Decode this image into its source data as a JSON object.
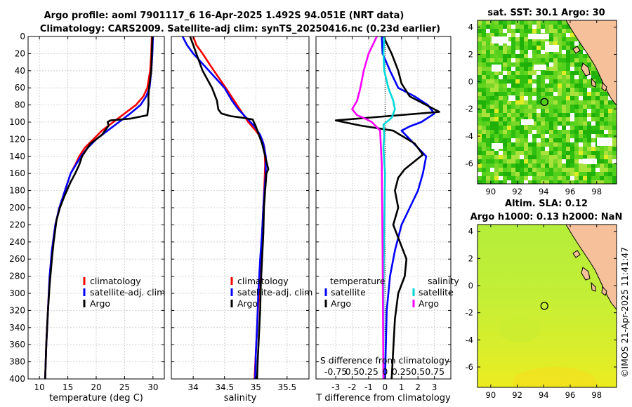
{
  "title": {
    "line1": "Argo profile: aoml 7901117_6 16-Apr-2025 1.492S 94.051E (NRT data)",
    "line2": "Climatology: CARS2009. Satellite-adj clim: synTS_20250416.nc (0.23d earlier)"
  },
  "stamp": "©IMOS 21-Apr-2025 11:41:47",
  "chart_data": [
    {
      "type": "line",
      "id": "temperature",
      "xlabel": "temperature (deg C)",
      "ylabel": "",
      "xlim": [
        8,
        32
      ],
      "ylim": [
        400,
        0
      ],
      "xticks": [
        10,
        15,
        20,
        25,
        30
      ],
      "yticks": [
        0,
        20,
        40,
        60,
        80,
        100,
        120,
        140,
        160,
        180,
        200,
        220,
        240,
        260,
        280,
        300,
        320,
        340,
        360,
        380,
        400
      ],
      "legend": [
        "climatology",
        "satellite-adj. clim",
        "Argo"
      ],
      "series": [
        {
          "name": "climatology",
          "color": "#ff0000",
          "x": [
            29.8,
            29.7,
            29.5,
            29.0,
            28.3,
            27.0,
            25.0,
            23.0,
            21.0,
            19.5,
            18.0,
            17.0,
            16.3,
            15.5,
            14.5,
            13.5,
            12.8,
            12.2,
            11.8,
            11.5,
            11.2,
            11.0
          ],
          "y": [
            0,
            20,
            40,
            60,
            70,
            80,
            90,
            100,
            110,
            120,
            130,
            140,
            150,
            160,
            180,
            200,
            220,
            250,
            280,
            320,
            360,
            400
          ]
        },
        {
          "name": "satellite-adj. clim",
          "color": "#0000ff",
          "x": [
            30.0,
            29.9,
            29.7,
            29.4,
            28.8,
            27.8,
            26.0,
            24.0,
            22.0,
            20.0,
            18.5,
            17.3,
            15.5,
            14.5,
            13.5,
            12.8,
            12.2,
            11.8,
            11.5,
            11.2,
            11.0
          ],
          "y": [
            0,
            20,
            40,
            60,
            70,
            80,
            90,
            100,
            110,
            120,
            130,
            140,
            160,
            180,
            200,
            220,
            250,
            280,
            320,
            360,
            400
          ]
        },
        {
          "name": "Argo",
          "color": "#000000",
          "x": [
            29.9,
            29.8,
            29.7,
            29.5,
            29.3,
            29.2,
            29.2,
            29.0,
            26.0,
            22.5,
            22.0,
            22.2,
            21.0,
            19.0,
            17.5,
            17.0,
            16.3,
            15.5,
            14.5,
            13.6,
            13.0,
            12.5,
            12.2,
            11.8,
            11.5,
            11.2,
            11.0
          ],
          "y": [
            0,
            20,
            40,
            50,
            60,
            70,
            80,
            92,
            96,
            98,
            100,
            104,
            115,
            125,
            140,
            150,
            160,
            170,
            185,
            200,
            215,
            240,
            260,
            290,
            320,
            360,
            400
          ]
        }
      ]
    },
    {
      "type": "line",
      "id": "salinity",
      "xlabel": "salinity",
      "xlim": [
        33.65,
        35.85
      ],
      "ylim": [
        400,
        0
      ],
      "xticks": [
        34,
        34.5,
        35,
        35.5
      ],
      "tick_labels": [
        "34",
        "34.5",
        "35",
        "35.5"
      ],
      "legend": [
        "climatology",
        "satellite-adj. clim",
        "Argo"
      ],
      "series": [
        {
          "name": "climatology",
          "color": "#ff0000",
          "x": [
            34.0,
            34.05,
            34.15,
            34.33,
            34.52,
            34.7,
            34.88,
            35.0,
            35.1,
            35.14,
            35.15,
            35.14,
            35.12,
            35.1,
            35.08,
            35.05,
            35.02,
            35.0,
            34.98
          ],
          "y": [
            0,
            10,
            20,
            40,
            60,
            80,
            100,
            110,
            120,
            130,
            150,
            170,
            200,
            230,
            260,
            300,
            340,
            370,
            400
          ]
        },
        {
          "name": "satellite-adj. clim",
          "color": "#0000ff",
          "x": [
            33.83,
            33.9,
            34.0,
            34.25,
            34.5,
            34.62,
            34.72,
            34.85,
            34.98,
            35.07,
            35.12,
            35.16,
            35.16,
            35.14,
            35.12,
            35.1,
            35.07,
            35.04,
            35.02,
            35.0,
            34.99
          ],
          "y": [
            0,
            10,
            20,
            40,
            60,
            75,
            85,
            95,
            105,
            115,
            125,
            140,
            160,
            180,
            200,
            230,
            260,
            300,
            340,
            370,
            400
          ]
        },
        {
          "name": "Argo",
          "color": "#000000",
          "x": [
            33.95,
            34.0,
            34.05,
            34.15,
            34.3,
            34.38,
            34.4,
            34.45,
            34.6,
            34.8,
            34.95,
            35.0,
            35.05,
            35.1,
            35.2,
            35.17,
            35.15,
            35.13,
            35.12,
            35.1,
            35.08,
            35.07,
            35.05,
            35.03,
            35.02
          ],
          "y": [
            0,
            10,
            20,
            40,
            60,
            75,
            85,
            90,
            93,
            95,
            97,
            105,
            115,
            125,
            155,
            160,
            180,
            200,
            230,
            260,
            290,
            320,
            350,
            380,
            400
          ]
        }
      ]
    },
    {
      "type": "line",
      "id": "difference",
      "xlabel": "T difference from climatology",
      "xlim": [
        -4.2,
        4.0
      ],
      "ylim": [
        400,
        0
      ],
      "xticks": [
        -3,
        -2,
        -1,
        0,
        1,
        2,
        3
      ],
      "s_axis_title": "S difference from climatology",
      "s_tick_labels": [
        "-0.75",
        "0.5",
        "0.25",
        "0",
        "0.25",
        "0.50.75"
      ],
      "s_tick_positions": [
        -3,
        -2,
        -1,
        0,
        1,
        2.6
      ],
      "legend": {
        "temperature_heading": "temperature",
        "salinity_heading": "salinity",
        "entries": [
          "satellite",
          "Argo",
          "satellite",
          "Argo"
        ]
      },
      "series": [
        {
          "name": "temperature satellite",
          "color": "#0000ff",
          "x": [
            -0.2,
            -0.15,
            0.3,
            0.8,
            1.8,
            2.6,
            3.0,
            2.2,
            1.5,
            1.0,
            2.5,
            2.3,
            2.0,
            1.5,
            1.0,
            0.6,
            0.3,
            0.1,
            0.0
          ],
          "y": [
            0,
            20,
            40,
            60,
            70,
            80,
            90,
            100,
            105,
            110,
            140,
            160,
            180,
            200,
            220,
            250,
            280,
            320,
            400
          ]
        },
        {
          "name": "temperature Argo",
          "color": "#000000",
          "x": [
            -0.1,
            0.4,
            0.8,
            1.0,
            1.5,
            2.5,
            3.3,
            -3.0,
            -1.5,
            0.5,
            1.8,
            2.3,
            1.2,
            0.8,
            0.6,
            0.8,
            0.5,
            1.3,
            1.2,
            0.8,
            0.6,
            0.4
          ],
          "y": [
            0,
            20,
            40,
            55,
            70,
            80,
            88,
            98,
            104,
            110,
            125,
            138,
            155,
            165,
            180,
            200,
            220,
            260,
            280,
            300,
            330,
            400
          ]
        },
        {
          "name": "salinity satellite",
          "color": "#00d8d8",
          "x": [
            -0.05,
            -0.1,
            -0.05,
            0.2,
            0.5,
            0.6,
            0.4,
            -0.1,
            -0.05,
            -0.1,
            0.0,
            -0.05,
            -0.1,
            -0.1
          ],
          "y": [
            0,
            20,
            40,
            60,
            75,
            85,
            95,
            103,
            115,
            130,
            160,
            220,
            300,
            400
          ]
        },
        {
          "name": "salinity Argo",
          "color": "#ff00ff",
          "x": [
            -0.5,
            -1.0,
            -1.3,
            -1.5,
            -1.7,
            -2.0,
            -1.7,
            -1.3,
            -0.8,
            -0.3,
            -0.2,
            -0.15,
            -0.1
          ],
          "y": [
            0,
            20,
            40,
            60,
            75,
            85,
            92,
            95,
            100,
            110,
            150,
            250,
            400
          ]
        }
      ]
    },
    {
      "type": "heatmap",
      "id": "sst_map",
      "title": "sat. SST: 30.1 Argo: 30",
      "xlim": [
        89,
        99.5
      ],
      "ylim": [
        -7.5,
        4.5
      ],
      "xticks": [
        90,
        92,
        94,
        96,
        98
      ],
      "yticks": [
        4,
        2,
        0,
        -2,
        -4,
        -6
      ],
      "marker": {
        "lon": 94.051,
        "lat": -1.492
      }
    },
    {
      "type": "heatmap",
      "id": "sla_map",
      "title": "Altim. SLA: 0.12",
      "subtitle": "Argo h1000: 0.13 h2000: NaN",
      "xlim": [
        89,
        99.5
      ],
      "ylim": [
        -7.5,
        4.5
      ],
      "xticks": [
        90,
        92,
        94,
        96,
        98
      ],
      "yticks": [
        4,
        2,
        0,
        -2,
        -4,
        -6
      ],
      "marker": {
        "lon": 94.051,
        "lat": -1.492
      }
    }
  ]
}
